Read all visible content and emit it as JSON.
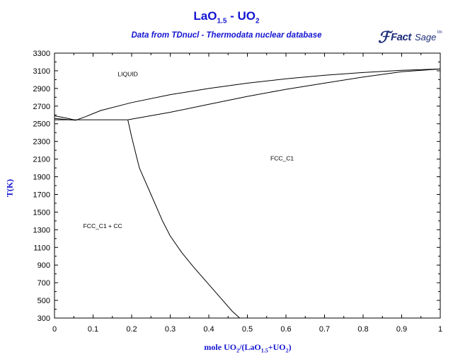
{
  "title": {
    "base": "LaO",
    "sub1": "1.5",
    "mid": " - UO",
    "sub2": "2"
  },
  "subtitle": "Data from TDnucl - Thermodata nuclear database",
  "logo": {
    "fact": "Fact",
    "sage": "Sage",
    "tm": "tm"
  },
  "colors": {
    "text_blue": "#1414d2",
    "lines": "#000000",
    "logo": "#1f2f7a"
  },
  "chart_data": {
    "type": "line",
    "title": "LaO1.5 - UO2",
    "subtitle": "Data from TDnucl - Thermodata nuclear database",
    "xlabel": "mole UO2/(LaO1.5+UO2)",
    "ylabel": "T(K)",
    "xlim": [
      0,
      1
    ],
    "ylim": [
      300,
      3300
    ],
    "xticks": [
      0,
      0.1,
      0.2,
      0.3,
      0.4,
      0.5,
      0.6,
      0.7,
      0.8,
      0.9,
      1
    ],
    "yticks": [
      300,
      500,
      700,
      900,
      1100,
      1300,
      1500,
      1700,
      1900,
      2100,
      2300,
      2500,
      2700,
      2900,
      3100,
      3300
    ],
    "grid": false,
    "regions": [
      {
        "label": "LIQUID",
        "x": 0.19,
        "y": 3040
      },
      {
        "label": "FCC_C1",
        "x": 0.59,
        "y": 2085
      },
      {
        "label": "FCC_C1 + CC",
        "x": 0.125,
        "y": 1320
      }
    ],
    "series": [
      {
        "x": [
          0,
          0.03,
          0.055,
          0.08,
          0.12,
          0.2,
          0.3,
          0.4,
          0.5,
          0.6,
          0.7,
          0.8,
          0.9,
          1.0
        ],
        "y": [
          2590,
          2565,
          2540,
          2580,
          2650,
          2740,
          2830,
          2900,
          2960,
          3010,
          3050,
          3080,
          3105,
          3120
        ]
      },
      {
        "x": [
          0.19,
          0.3,
          0.4,
          0.5,
          0.6,
          0.7,
          0.8,
          0.9,
          1.0
        ],
        "y": [
          2545,
          2630,
          2720,
          2810,
          2890,
          2960,
          3030,
          3090,
          3120
        ]
      },
      {
        "x": [
          0,
          0.055
        ],
        "y": [
          2560,
          2540
        ]
      },
      {
        "x": [
          0,
          0.19
        ],
        "y": [
          2545,
          2545
        ]
      },
      {
        "x": [
          0.19,
          0.2,
          0.22,
          0.25,
          0.28,
          0.3,
          0.33,
          0.36,
          0.4,
          0.43,
          0.46,
          0.48
        ],
        "y": [
          2545,
          2350,
          2000,
          1700,
          1400,
          1230,
          1040,
          880,
          680,
          530,
          380,
          300
        ]
      }
    ]
  }
}
